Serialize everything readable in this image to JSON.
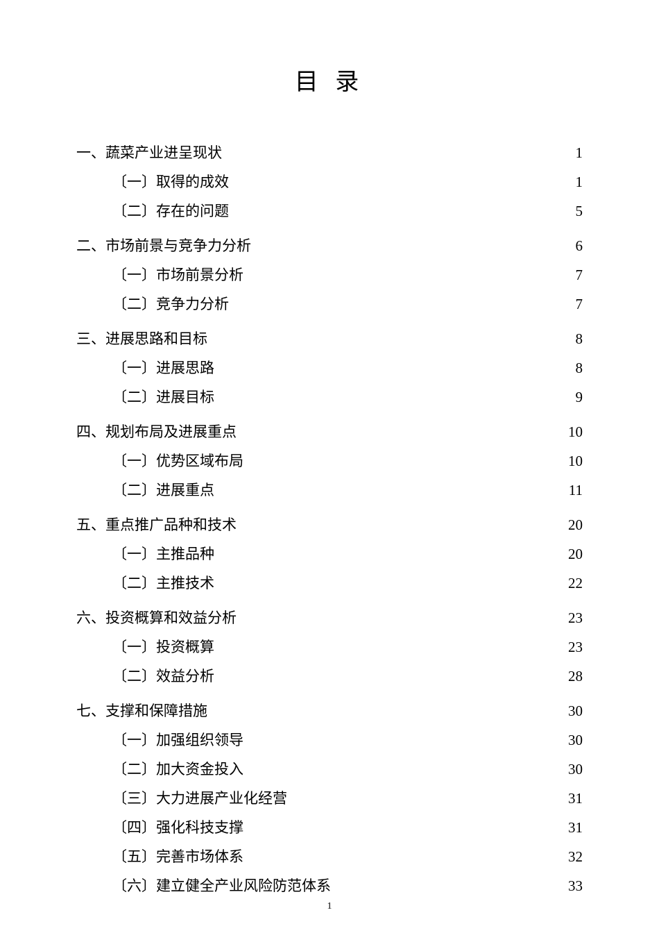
{
  "title": "目 录",
  "page_number": "1",
  "colors": {
    "background": "#ffffff",
    "text": "#000000"
  },
  "typography": {
    "title_fontsize": 34,
    "body_fontsize": 21,
    "font_family": "SimSun"
  },
  "sections": [
    {
      "label": "一、蔬菜产业进呈现状",
      "page": "1",
      "children": [
        {
          "label": "〔一〕取得的成效",
          "page": "1"
        },
        {
          "label": "〔二〕存在的问题",
          "page": "5"
        }
      ]
    },
    {
      "label": "二、市场前景与竞争力分析",
      "page": "6",
      "children": [
        {
          "label": "〔一〕市场前景分析",
          "page": "7"
        },
        {
          "label": "〔二〕竞争力分析",
          "page": "7"
        }
      ]
    },
    {
      "label": "三、进展思路和目标",
      "page": "8",
      "children": [
        {
          "label": "〔一〕进展思路",
          "page": "8"
        },
        {
          "label": "〔二〕进展目标",
          "page": "9"
        }
      ]
    },
    {
      "label": "四、规划布局及进展重点",
      "page": "10",
      "children": [
        {
          "label": "〔一〕优势区域布局",
          "page": "10"
        },
        {
          "label": "〔二〕进展重点",
          "page": "11"
        }
      ]
    },
    {
      "label": "五、重点推广品种和技术",
      "page": "20",
      "children": [
        {
          "label": "〔一〕主推品种",
          "page": "20"
        },
        {
          "label": "〔二〕主推技术",
          "page": "22"
        }
      ]
    },
    {
      "label": "六、投资概算和效益分析",
      "page": "23",
      "children": [
        {
          "label": "〔一〕投资概算",
          "page": "23"
        },
        {
          "label": "〔二〕效益分析",
          "page": "28"
        }
      ]
    },
    {
      "label": "七、支撑和保障措施",
      "page": "30",
      "children": [
        {
          "label": "〔一〕加强组织领导",
          "page": "30"
        },
        {
          "label": "〔二〕加大资金投入",
          "page": "30"
        },
        {
          "label": "〔三〕大力进展产业化经营",
          "page": "31"
        },
        {
          "label": "〔四〕强化科技支撑",
          "page": "31"
        },
        {
          "label": "〔五〕完善市场体系",
          "page": "32"
        },
        {
          "label": "〔六〕建立健全产业风险防范体系",
          "page": "33"
        }
      ]
    }
  ]
}
